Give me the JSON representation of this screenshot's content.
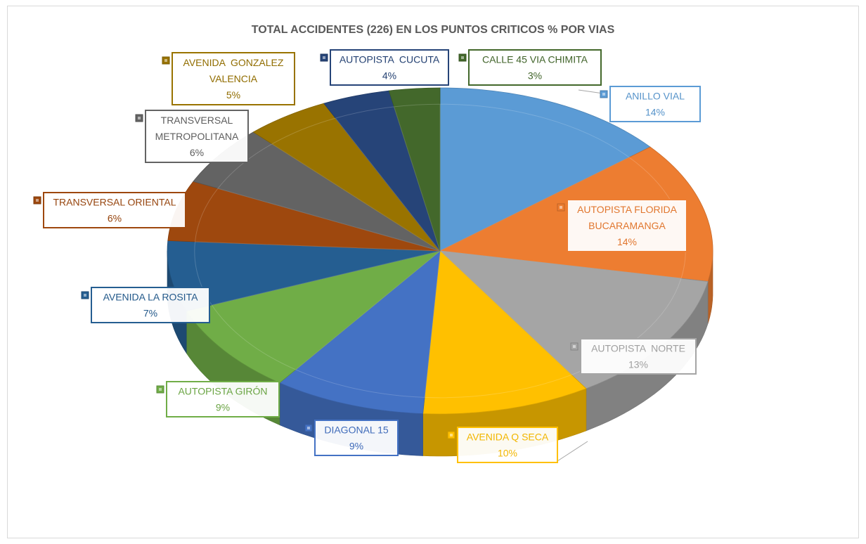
{
  "chart_data": {
    "type": "pie",
    "title": "TOTAL ACCIDENTES (226) EN LOS PUNTOS CRITICOS % POR VIAS",
    "categories": [
      "ANILLO VIAL",
      "AUTOPISTA FLORIDA BUCARAMANGA",
      "AUTOPISTA  NORTE",
      "AVENIDA Q SECA",
      "DIAGONAL 15",
      "AUTOPISTA GIRÓN",
      "AVENIDA LA ROSITA",
      "TRANSVERSAL ORIENTAL",
      "TRANSVERSAL METROPOLITANA",
      "AVENIDA  GONZALEZ VALENCIA",
      "AUTOPISTA  CUCUTA",
      "CALLE 45 VIA CHIMITA"
    ],
    "values": [
      14,
      14,
      13,
      10,
      9,
      9,
      7,
      6,
      6,
      5,
      4,
      3
    ],
    "labels": [
      "14%",
      "14%",
      "13%",
      "10%",
      "9%",
      "9%",
      "7%",
      "6%",
      "6%",
      "5%",
      "4%",
      "3%"
    ],
    "colors": [
      "#5B9BD5",
      "#ED7D31",
      "#A5A5A5",
      "#FFC000",
      "#4472C4",
      "#70AD47",
      "#255E91",
      "#9E480E",
      "#636363",
      "#997300",
      "#264478",
      "#43682B"
    ],
    "legend": "none"
  }
}
